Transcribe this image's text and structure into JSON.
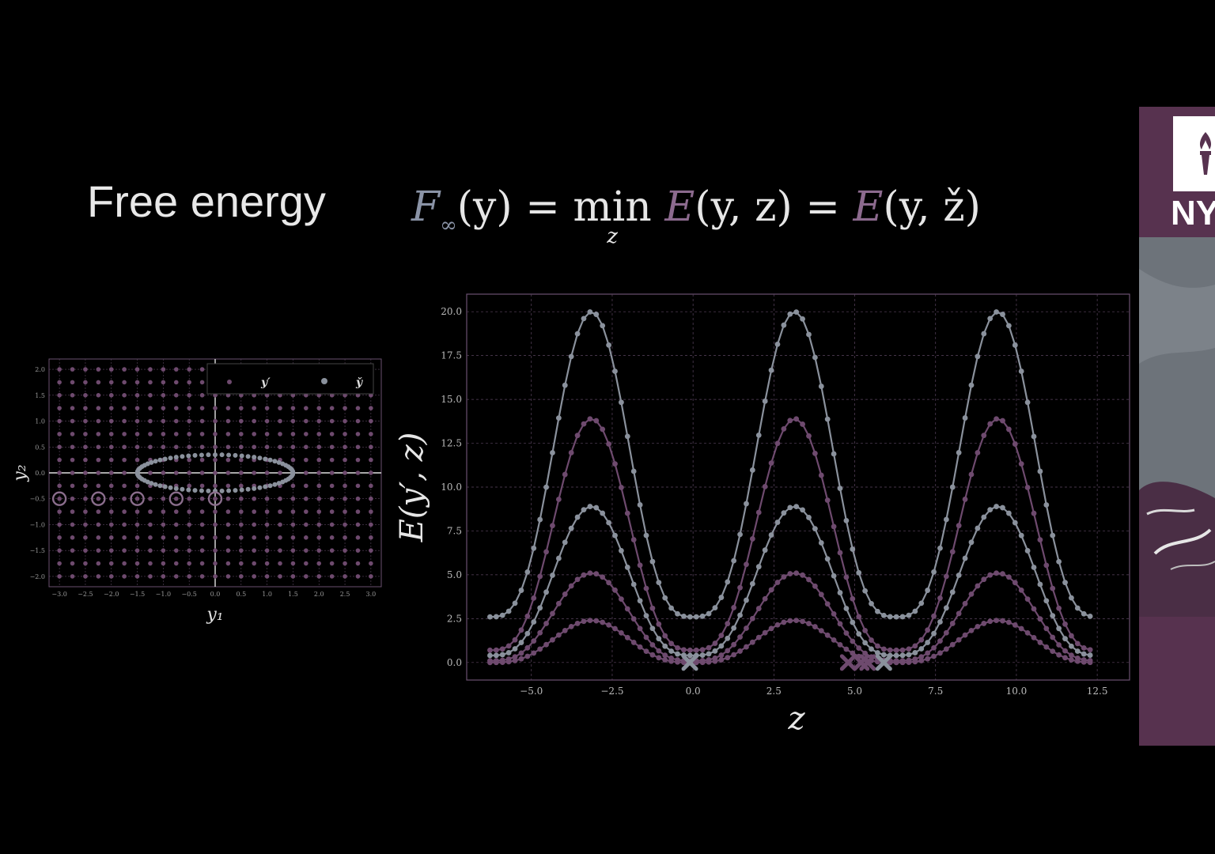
{
  "slide": {
    "title": "Free energy",
    "formula": {
      "F": "F",
      "inf_sub": "∞",
      "arg_y": "(y)",
      "eq1": " = ",
      "min": "min",
      "min_sub": "z",
      "E1": "E",
      "arg1": "(y, z)",
      "eq2": " = ",
      "E2": "E",
      "arg2": "(y, ž)"
    }
  },
  "colors": {
    "background": "#000000",
    "series_purple": "#6e4a6e",
    "series_gray": "#8a919c",
    "grid": "#5b4560",
    "axis_frame": "#6a5170",
    "nyu_purple": "#57324f"
  },
  "chart_data": [
    {
      "type": "scatter",
      "xlabel": "y₁",
      "ylabel": "y₂",
      "xlim": [
        -3.2,
        3.2
      ],
      "ylim": [
        -2.2,
        2.2
      ],
      "xticks": [
        -3.0,
        -2.5,
        -2.0,
        -1.5,
        -1.0,
        -0.5,
        0.0,
        0.5,
        1.0,
        1.5,
        2.0,
        2.5,
        3.0
      ],
      "yticks": [
        -2.0,
        -1.5,
        -1.0,
        -0.5,
        0.0,
        0.5,
        1.0,
        1.5,
        2.0
      ],
      "xtick_labels": [
        "−3.0",
        "−2.5",
        "−2.0",
        "−1.5",
        "−1.0",
        "−0.5",
        "0.0",
        "0.5",
        "1.0",
        "1.5",
        "2.0",
        "2.5",
        "3.0"
      ],
      "ytick_labels": [
        "−2.0",
        "−1.5",
        "−1.0",
        "−0.5",
        "0.0",
        "0.5",
        "1.0",
        "1.5",
        "2.0"
      ],
      "grid": true,
      "legend": {
        "placement": "top-right",
        "entries": [
          "y′",
          "y̌"
        ]
      },
      "series": [
        {
          "name": "y′",
          "kind": "grid-points",
          "x_range": [
            -3.0,
            3.0
          ],
          "y_range": [
            -2.0,
            2.0
          ],
          "step": 0.25
        },
        {
          "name": "y̌",
          "kind": "ellipse",
          "center": [
            0.0,
            0.0
          ],
          "semi_axes": [
            1.5,
            0.35
          ]
        }
      ],
      "highlighted_points": [
        [
          -3.0,
          -0.5
        ],
        [
          -2.25,
          -0.5
        ],
        [
          -1.5,
          -0.5
        ],
        [
          -0.75,
          -0.5
        ],
        [
          0.0,
          -0.5
        ]
      ]
    },
    {
      "type": "line",
      "xlabel": "z",
      "ylabel": "E(y′, z)",
      "xlim": [
        -7.0,
        13.5
      ],
      "ylim": [
        -1.0,
        21.0
      ],
      "xticks": [
        -5.0,
        -2.5,
        0.0,
        2.5,
        5.0,
        7.5,
        10.0,
        12.5
      ],
      "yticks": [
        0.0,
        2.5,
        5.0,
        7.5,
        10.0,
        12.5,
        15.0,
        17.5,
        20.0
      ],
      "xtick_labels": [
        "−5.0",
        "−2.5",
        "0.0",
        "2.5",
        "5.0",
        "7.5",
        "10.0",
        "12.5"
      ],
      "ytick_labels": [
        "0.0",
        "2.5",
        "5.0",
        "7.5",
        "10.0",
        "12.5",
        "15.0",
        "17.5",
        "20.0"
      ],
      "grid": true,
      "x_start": -6.28,
      "x_end": 12.28,
      "n_points": 97,
      "series": [
        {
          "peak": 20.0,
          "trough": 2.6,
          "color": "#8a919c"
        },
        {
          "peak": 13.9,
          "trough": 0.7,
          "color": "#6e4a6e"
        },
        {
          "peak": 8.9,
          "trough": 0.4,
          "color": "#8a919c"
        },
        {
          "peak": 5.1,
          "trough": 0.1,
          "color": "#6e4a6e"
        },
        {
          "peak": 2.4,
          "trough": 0.0,
          "color": "#6e4a6e"
        }
      ],
      "minima_markers": [
        {
          "z": -0.1,
          "color": "#8a919c"
        },
        {
          "z": 4.8,
          "color": "#6e4a6e"
        },
        {
          "z": 5.2,
          "color": "#6e4a6e"
        },
        {
          "z": 5.4,
          "color": "#6e4a6e"
        },
        {
          "z": 5.9,
          "color": "#8a919c"
        }
      ]
    }
  ],
  "nyu": {
    "logo_text": "NY"
  }
}
